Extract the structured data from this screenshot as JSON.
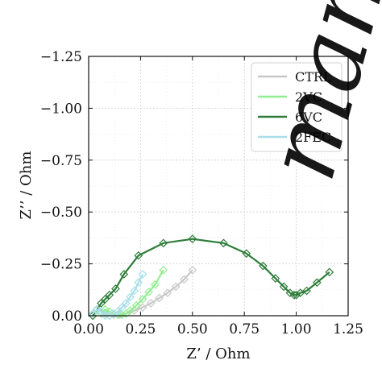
{
  "chart_data": {
    "type": "scatter",
    "xlabel": "Z’ / Ohm",
    "ylabel": "Z’’ / Ohm",
    "xlim": [
      0,
      1.25
    ],
    "ylim": [
      0,
      -1.25
    ],
    "y_axis_inverted": true,
    "grid": true,
    "grid_style": "dotted",
    "legend_position": "top-right",
    "x_ticks": [
      "0.00",
      "0.25",
      "0.50",
      "0.75",
      "1.00",
      "1.25"
    ],
    "y_ticks": [
      "0.00",
      "−0.25",
      "−0.50",
      "−0.75",
      "−1.00",
      "−1.25"
    ],
    "x_tick_values": [
      0,
      0.25,
      0.5,
      0.75,
      1.0,
      1.25
    ],
    "y_tick_values": [
      0,
      -0.25,
      -0.5,
      -0.75,
      -1.0,
      -1.25
    ],
    "series": [
      {
        "name": "CTRL",
        "color": "#c8c8c8",
        "marker": "diamond",
        "x": [
          0.08,
          0.1,
          0.12,
          0.15,
          0.18,
          0.22,
          0.26,
          0.3,
          0.34,
          0.38,
          0.42,
          0.46,
          0.5
        ],
        "y": [
          -0.01,
          -0.0,
          -0.005,
          -0.005,
          -0.01,
          -0.025,
          -0.04,
          -0.06,
          -0.085,
          -0.11,
          -0.14,
          -0.175,
          -0.22
        ]
      },
      {
        "name": "2VC",
        "color": "#90ee90",
        "marker": "diamond",
        "x": [
          0.06,
          0.08,
          0.1,
          0.12,
          0.14,
          0.16,
          0.18,
          0.2,
          0.23,
          0.26,
          0.29,
          0.32,
          0.36
        ],
        "y": [
          -0.01,
          -0.03,
          -0.02,
          -0.01,
          -0.005,
          -0.005,
          -0.01,
          -0.025,
          -0.05,
          -0.08,
          -0.115,
          -0.15,
          -0.22
        ]
      },
      {
        "name": "6VC",
        "color": "#2e7d3a",
        "marker": "diamond",
        "x": [
          0.02,
          0.04,
          0.06,
          0.08,
          0.1,
          0.13,
          0.17,
          0.24,
          0.36,
          0.5,
          0.65,
          0.76,
          0.84,
          0.9,
          0.94,
          0.97,
          0.99,
          1.0,
          1.02,
          1.05,
          1.1,
          1.16
        ],
        "y": [
          -0.0,
          -0.03,
          -0.06,
          -0.08,
          -0.1,
          -0.13,
          -0.2,
          -0.29,
          -0.35,
          -0.37,
          -0.35,
          -0.3,
          -0.24,
          -0.18,
          -0.14,
          -0.11,
          -0.1,
          -0.1,
          -0.11,
          -0.12,
          -0.16,
          -0.21
        ]
      },
      {
        "name": "2FEC",
        "color": "#a8dfe8",
        "marker": "diamond",
        "x": [
          0.02,
          0.04,
          0.06,
          0.08,
          0.1,
          0.12,
          0.14,
          0.16,
          0.18,
          0.2,
          0.22,
          0.24,
          0.26
        ],
        "y": [
          -0.01,
          -0.03,
          -0.02,
          -0.0,
          -0.0,
          -0.01,
          -0.02,
          -0.04,
          -0.06,
          -0.09,
          -0.12,
          -0.16,
          -0.2
        ]
      }
    ]
  },
  "watermark": {
    "text": "manus"
  }
}
